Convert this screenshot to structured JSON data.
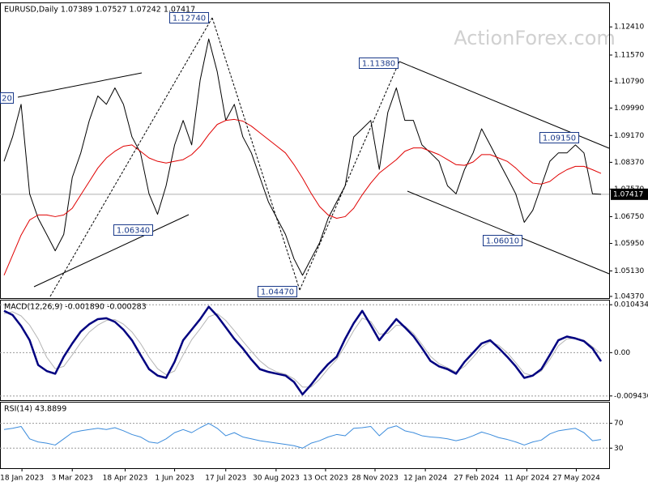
{
  "watermark": "ActionForex.com",
  "chart_data": [
    {
      "type": "line",
      "title": "EURUSD,Daily 1.07389 1.07527 1.07242 1.07417",
      "xlim": [
        0,
        70
      ],
      "ylim": [
        1.0432,
        1.1314
      ],
      "yticks": [
        {
          "value": 1.1241,
          "label": "1.12410"
        },
        {
          "value": 1.1157,
          "label": "1.11570"
        },
        {
          "value": 1.1079,
          "label": "1.10790"
        },
        {
          "value": 1.0999,
          "label": "1.09990"
        },
        {
          "value": 1.0917,
          "label": "1.09170"
        },
        {
          "value": 1.0837,
          "label": "1.08370"
        },
        {
          "value": 1.0757,
          "label": "1.07570"
        },
        {
          "value": 1.0675,
          "label": "1.06750"
        },
        {
          "value": 1.0595,
          "label": "1.05950"
        },
        {
          "value": 1.0513,
          "label": "1.05130"
        },
        {
          "value": 1.0437,
          "label": "1.04370"
        }
      ],
      "grid": false,
      "current_price": {
        "value": 1.07417,
        "label": "1.07417"
      },
      "annotations": [
        {
          "value": 1.1274,
          "label": "1.12740"
        },
        {
          "value": 1.1138,
          "label": "1.11380"
        },
        {
          "value": 1.0915,
          "label": "1.09150"
        },
        {
          "value": 1.0634,
          "label": "1.06340"
        },
        {
          "value": 1.0601,
          "label": "1.06010"
        },
        {
          "value": 1.0447,
          "label": "1.04470"
        },
        {
          "label": "20"
        }
      ],
      "series": [
        {
          "color": "#000000",
          "values": [
            1.084,
            1.0913,
            1.101,
            1.0743,
            1.067,
            1.0622,
            1.0573,
            1.0622,
            1.0792,
            1.0865,
            1.0962,
            1.1035,
            1.101,
            1.1059,
            1.101,
            1.0913,
            1.0865,
            1.0743,
            1.0682,
            1.0767,
            1.0889,
            1.0962,
            1.0889,
            1.1083,
            1.1205,
            1.1107,
            1.0962,
            1.101,
            1.0913,
            1.0865,
            1.0792,
            1.0719,
            1.067,
            1.0622,
            1.0549,
            1.05,
            1.0549,
            1.0597,
            1.067,
            1.0719,
            1.0767,
            1.0913,
            1.0937,
            1.0962,
            1.0816,
            1.0986,
            1.1059,
            1.0962,
            1.0962,
            1.0889,
            1.0865,
            1.084,
            1.0767,
            1.0743,
            1.0816,
            1.0865,
            1.0937,
            1.0889,
            1.084,
            1.0792,
            1.0743,
            1.0658,
            1.0694,
            1.0767,
            1.084,
            1.0865,
            1.0865,
            1.0889,
            1.0865,
            1.0743,
            1.07417
          ]
        },
        {
          "color": "#e00000",
          "values": [
            1.05,
            1.056,
            1.062,
            1.0665,
            1.068,
            1.068,
            1.0675,
            1.068,
            1.07,
            1.074,
            1.078,
            1.082,
            1.085,
            1.087,
            1.0885,
            1.0889,
            1.087,
            1.085,
            1.084,
            1.0835,
            1.084,
            1.0845,
            1.086,
            1.0885,
            1.092,
            1.095,
            1.0962,
            1.0965,
            1.096,
            1.0945,
            1.0925,
            1.0905,
            1.0885,
            1.0865,
            1.083,
            1.079,
            1.0745,
            1.0705,
            1.068,
            1.067,
            1.0675,
            1.07,
            1.074,
            1.0775,
            1.0805,
            1.0825,
            1.0845,
            1.087,
            1.088,
            1.088,
            1.087,
            1.086,
            1.0845,
            1.083,
            1.0828,
            1.0838,
            1.086,
            1.086,
            1.085,
            1.084,
            1.082,
            1.0795,
            1.0775,
            1.0772,
            1.078,
            1.08,
            1.0815,
            1.0825,
            1.0825,
            1.0815,
            1.0804
          ]
        }
      ]
    },
    {
      "type": "line",
      "title": "MACD(12,26,9) -0.001890 -0.000283",
      "xlim": [
        0,
        70
      ],
      "ylim": [
        -0.01035,
        0.01153
      ],
      "yticks": [
        0.010434,
        {
          "value": 0,
          "label": "0.00"
        },
        -0.009436
      ],
      "grid": true,
      "series": [
        {
          "color": "#b4b4b4",
          "values": [
            0.0085,
            0.0089,
            0.008,
            0.006,
            0.003,
            -0.001,
            -0.0035,
            -0.003,
            -0.0005,
            0.0022,
            0.0045,
            0.006,
            0.007,
            0.0072,
            0.0062,
            0.0045,
            0.002,
            -0.001,
            -0.0035,
            -0.0048,
            -0.004,
            -0.0005,
            0.0028,
            0.0052,
            0.0078,
            0.0085,
            0.007,
            0.0048,
            0.0025,
            0.0003,
            -0.0018,
            -0.0033,
            -0.0042,
            -0.0047,
            -0.0057,
            -0.0075,
            -0.0075,
            -0.0058,
            -0.0035,
            -0.0015,
            0.0015,
            0.0048,
            0.0075,
            0.0068,
            0.004,
            0.0042,
            0.006,
            0.0058,
            0.0042,
            0.0018,
            -0.0008,
            -0.0024,
            -0.0033,
            -0.0042,
            -0.003,
            -0.001,
            0.0012,
            0.0024,
            0.0016,
            0,
            -0.0022,
            -0.0045,
            -0.005,
            -0.004,
            -0.0015,
            0.0015,
            0.003,
            0.0031,
            0.0027,
            0.0013,
            -0.000283
          ]
        },
        {
          "color": "#000080",
          "values": [
            0.0091,
            0.0082,
            0.0058,
            0.0027,
            -0.0027,
            -0.004,
            -0.0046,
            -0.0009,
            0.002,
            0.0046,
            0.0062,
            0.0073,
            0.0075,
            0.0067,
            0.005,
            0.0027,
            -0.0005,
            -0.0036,
            -0.005,
            -0.0055,
            -0.002,
            0.0027,
            0.005,
            0.0073,
            0.01,
            0.008,
            0.0055,
            0.003,
            0.0009,
            -0.0015,
            -0.0036,
            -0.0042,
            -0.0046,
            -0.005,
            -0.0064,
            -0.0091,
            -0.007,
            -0.0046,
            -0.0025,
            -0.0009,
            0.003,
            0.0064,
            0.0091,
            0.006,
            0.0027,
            0.005,
            0.0073,
            0.0055,
            0.0036,
            0.001,
            -0.0018,
            -0.003,
            -0.0036,
            -0.0046,
            -0.002,
            0,
            0.002,
            0.0027,
            0.001,
            -0.0009,
            -0.003,
            -0.0055,
            -0.005,
            -0.0036,
            -0.0005,
            0.0027,
            0.0035,
            0.0031,
            0.0025,
            0.0009,
            -0.00189
          ]
        }
      ]
    },
    {
      "type": "line",
      "title": "RSI(14) 43.8899",
      "xlim": [
        0,
        70
      ],
      "ylim": [
        -2.3,
        104.8
      ],
      "yticks": [
        70,
        30
      ],
      "grid": true,
      "xticks": [
        {
          "value": 2.1,
          "label": "18 Jan 2023"
        },
        {
          "value": 8.0,
          "label": "3 Mar 2023"
        },
        {
          "value": 14.2,
          "label": "18 Apr 2023"
        },
        {
          "value": 20.0,
          "label": "1 Jun 2023"
        },
        {
          "value": 26.0,
          "label": "17 Jul 2023"
        },
        {
          "value": 31.9,
          "label": "30 Aug 2023"
        },
        {
          "value": 37.7,
          "label": "13 Oct 2023"
        },
        {
          "value": 43.5,
          "label": "28 Nov 2023"
        },
        {
          "value": 49.4,
          "label": "12 Jan 2024"
        },
        {
          "value": 55.4,
          "label": "27 Feb 2024"
        },
        {
          "value": 61.3,
          "label": "11 Apr 2024"
        },
        {
          "value": 67.1,
          "label": "27 May 2024"
        }
      ],
      "series": [
        {
          "color": "#3c8cdc",
          "values": [
            60,
            62,
            65,
            45,
            40,
            38,
            35,
            45,
            55,
            58,
            60,
            62,
            60,
            63,
            58,
            52,
            48,
            40,
            38,
            45,
            55,
            60,
            55,
            63,
            70,
            62,
            50,
            55,
            48,
            45,
            42,
            40,
            38,
            36,
            34,
            30,
            38,
            42,
            48,
            52,
            50,
            62,
            63,
            65,
            50,
            62,
            66,
            58,
            55,
            50,
            48,
            47,
            45,
            42,
            45,
            50,
            56,
            52,
            47,
            44,
            40,
            35,
            40,
            43,
            53,
            58,
            60,
            62,
            55,
            42,
            43.8899
          ]
        }
      ]
    }
  ]
}
